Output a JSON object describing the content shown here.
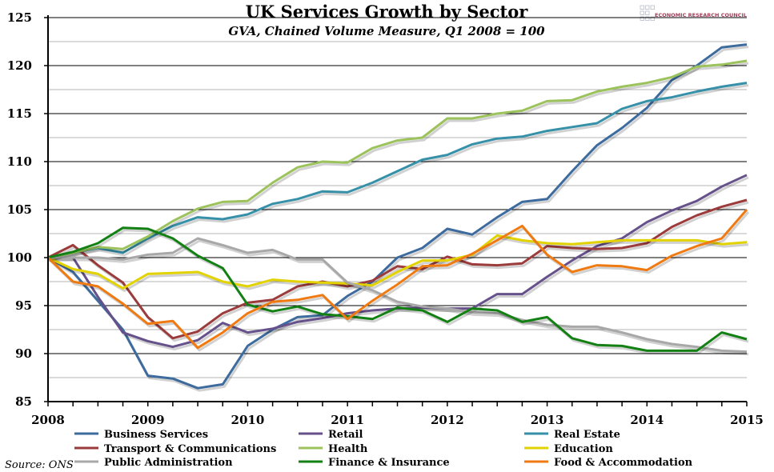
{
  "chart_data": {
    "type": "line",
    "title": "UK Services Growth by Sector",
    "subtitle": "GVA, Chained Volume Measure, Q1 2008 = 100",
    "source": "Source: ONS",
    "logo_text": "ECONOMIC RESEARCH COUNCIL",
    "x_frequency": "quarterly, 2008 Q1 to 2015 Q1",
    "x_ticks": [
      "2008",
      "2009",
      "2010",
      "2011",
      "2012",
      "2013",
      "2014",
      "2015"
    ],
    "xlim": [
      2008,
      2015
    ],
    "ylim": [
      85,
      125
    ],
    "y_ticks": [
      85,
      90,
      95,
      100,
      105,
      110,
      115,
      120,
      125
    ],
    "grid": true,
    "legend_position": "bottom",
    "series": [
      {
        "name": "Business Services",
        "color": "#3d6b9e",
        "values": [
          100,
          98.5,
          95.5,
          92.5,
          87.7,
          87.4,
          86.4,
          86.8,
          90.8,
          92.5,
          93.8,
          94,
          96,
          97.5,
          100,
          101,
          103,
          102.4,
          104.2,
          105.8,
          106.1,
          109,
          111.7,
          113.5,
          115.6,
          118.5,
          120,
          121.9,
          122.2
        ]
      },
      {
        "name": "Retail",
        "color": "#66518a",
        "values": [
          100,
          100,
          95.9,
          92.2,
          91.3,
          90.7,
          91.4,
          93.2,
          92.2,
          92.6,
          93.3,
          93.7,
          94.2,
          94.5,
          94.7,
          94.8,
          94.7,
          94.7,
          96.2,
          96.2,
          98,
          99.7,
          101.2,
          102,
          103.7,
          104.9,
          105.9,
          107.4,
          108.6
        ]
      },
      {
        "name": "Real Estate",
        "color": "#3590a8",
        "values": [
          100,
          100.5,
          101,
          100.5,
          102,
          103.3,
          104.2,
          104,
          104.5,
          105.6,
          106.1,
          106.9,
          106.8,
          107.8,
          109,
          110.2,
          110.7,
          111.8,
          112.4,
          112.6,
          113.2,
          113.6,
          114,
          115.5,
          116.3,
          116.7,
          117.3,
          117.8,
          118.2
        ]
      },
      {
        "name": "Transport & Communications",
        "color": "#9b3b3b",
        "values": [
          100,
          101.3,
          99.2,
          97.4,
          93.8,
          91.6,
          92.3,
          94.2,
          95.3,
          95.6,
          97,
          97.5,
          97,
          97.6,
          99.1,
          98.8,
          100.1,
          99.3,
          99.2,
          99.4,
          101.2,
          101,
          100.9,
          101,
          101.5,
          103.2,
          104.4,
          105.3,
          106
        ]
      },
      {
        "name": "Health",
        "color": "#9cc25c",
        "values": [
          100,
          100.5,
          101.1,
          100.9,
          102.2,
          103.8,
          105.1,
          105.8,
          105.9,
          107.8,
          109.4,
          110,
          109.9,
          111.4,
          112.2,
          112.5,
          114.5,
          114.5,
          115,
          115.3,
          116.3,
          116.4,
          117.3,
          117.8,
          118.2,
          118.8,
          119.9,
          120.1,
          120.5
        ]
      },
      {
        "name": "Education",
        "color": "#e2d200",
        "values": [
          100,
          98.8,
          98.3,
          96.8,
          98.3,
          98.4,
          98.5,
          97.5,
          97,
          97.7,
          97.5,
          97.4,
          97.3,
          97.1,
          98.5,
          99.7,
          99.7,
          100.3,
          102.3,
          101.8,
          101.5,
          101.4,
          101.6,
          101.8,
          101.8,
          101.8,
          101.8,
          101.4,
          101.6
        ]
      },
      {
        "name": "Public Administration",
        "color": "#a8a8a8",
        "values": [
          100,
          100,
          100,
          99.8,
          100.3,
          100.5,
          102,
          101.3,
          100.5,
          100.8,
          99.8,
          99.8,
          97.4,
          96.6,
          95.4,
          94.9,
          94.7,
          94.3,
          94.2,
          93.5,
          93,
          92.8,
          92.8,
          92.2,
          91.5,
          91,
          90.7,
          90.3,
          90.2
        ]
      },
      {
        "name": "Finance & Insurance",
        "color": "#138013",
        "values": [
          100,
          100.6,
          101.5,
          103.1,
          103,
          102,
          100.2,
          98.9,
          95.1,
          94.4,
          94.9,
          94.1,
          93.9,
          93.6,
          94.8,
          94.5,
          93.3,
          94.7,
          94.5,
          93.3,
          93.8,
          91.6,
          90.9,
          90.8,
          90.3,
          90.3,
          90.3,
          92.2,
          91.5
        ]
      },
      {
        "name": "Food & Accommodation",
        "color": "#f07a12",
        "values": [
          100,
          97.5,
          97,
          95.2,
          93.1,
          93.4,
          90.6,
          92.2,
          94.2,
          95.4,
          95.6,
          96.1,
          93.6,
          95.5,
          97.2,
          99.1,
          99.2,
          100.4,
          101.8,
          103.3,
          100.3,
          98.5,
          99.2,
          99.1,
          98.7,
          100.2,
          101.2,
          102,
          105
        ]
      }
    ]
  }
}
